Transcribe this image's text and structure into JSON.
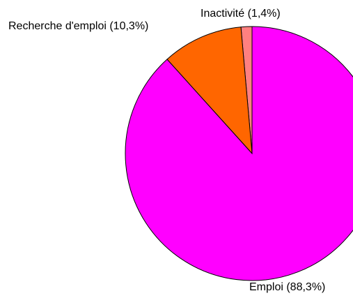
{
  "chart_data": {
    "type": "pie",
    "value_labels": [
      "Inactivité (1,4%)",
      "Recherche d'emploi (10,3%)",
      "Emploi (88,3%)"
    ],
    "values": [
      1.4,
      10.3,
      88.3
    ],
    "colors": [
      "#ff8080",
      "#ff6600",
      "#ff00ff"
    ]
  }
}
